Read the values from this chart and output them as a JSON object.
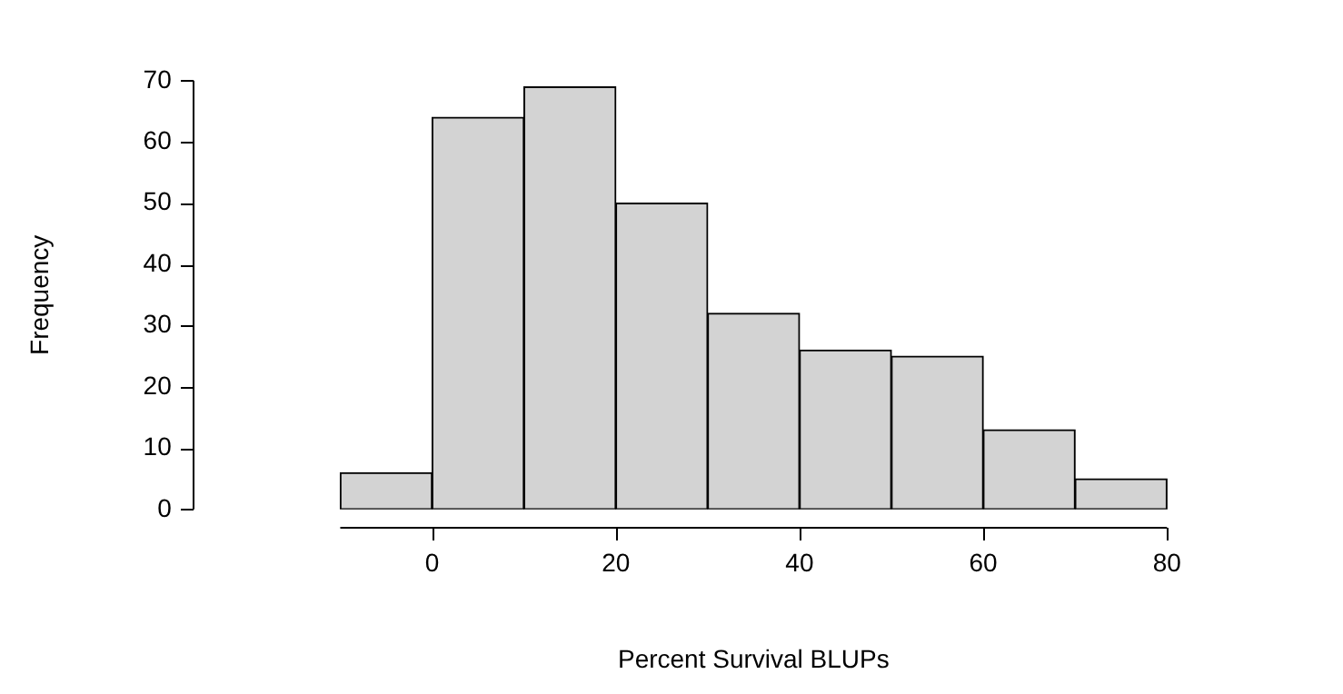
{
  "chart_data": {
    "type": "histogram",
    "xlabel": "Percent Survival BLUPs",
    "ylabel": "Frequency",
    "bins": [
      -10,
      0,
      10,
      20,
      30,
      40,
      50,
      60,
      70,
      80
    ],
    "values": [
      6,
      64,
      69,
      50,
      32,
      26,
      25,
      13,
      5
    ],
    "color": "#d3d3d3",
    "xlim": [
      -10,
      80
    ],
    "xticks": [
      0,
      20,
      40,
      60,
      80
    ],
    "ylim": [
      0,
      70
    ],
    "yticks": [
      0,
      10,
      20,
      30,
      40,
      50,
      60,
      70
    ],
    "grid": false,
    "legend": false
  }
}
